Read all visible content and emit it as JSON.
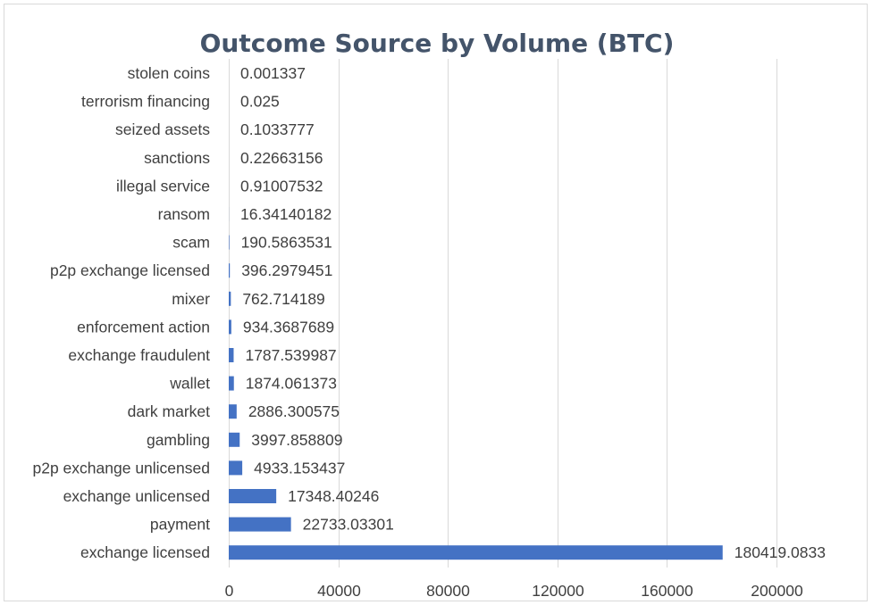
{
  "chart_data": {
    "type": "bar",
    "orientation": "horizontal",
    "title": "Outcome Source by Volume (BTC)",
    "xlabel": "",
    "ylabel": "",
    "xlim": [
      0,
      220000
    ],
    "x_ticks": [
      0,
      40000,
      80000,
      120000,
      160000,
      200000
    ],
    "x_tick_labels": [
      "0",
      "40000",
      "80000",
      "120000",
      "160000",
      "200000"
    ],
    "grid": true,
    "legend": "none",
    "bar_color": "#4472c4",
    "categories": [
      "exchange licensed",
      "payment",
      "exchange unlicensed",
      "p2p exchange unlicensed",
      "gambling",
      "dark market",
      "wallet",
      "exchange fraudulent",
      "enforcement action",
      "mixer",
      "p2p exchange licensed",
      "scam",
      "ransom",
      "illegal service",
      "sanctions",
      "seized assets",
      "terrorism financing",
      "stolen coins"
    ],
    "values": [
      180419.0833,
      22733.03301,
      17348.40246,
      4933.153437,
      3997.858809,
      2886.300575,
      1874.061373,
      1787.539987,
      934.3687689,
      762.714189,
      396.2979451,
      190.5863531,
      16.34140182,
      0.91007532,
      0.22663156,
      0.1033777,
      0.025,
      0.001337
    ],
    "value_labels": [
      "180419.0833",
      "22733.03301",
      "17348.40246",
      "4933.153437",
      "3997.858809",
      "2886.300575",
      "1874.061373",
      "1787.539987",
      "934.3687689",
      "762.714189",
      "396.2979451",
      "190.5863531",
      "16.34140182",
      "0.91007532",
      "0.22663156",
      "0.1033777",
      "0.025",
      "0.001337"
    ]
  }
}
